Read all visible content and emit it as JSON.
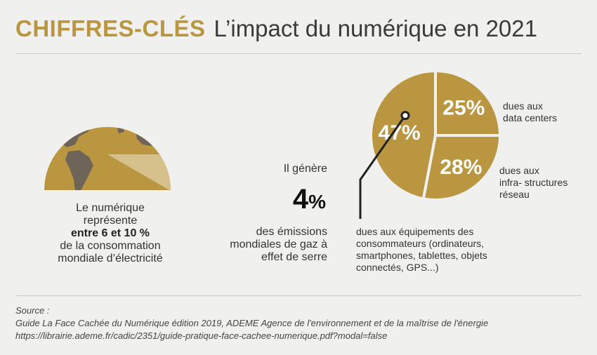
{
  "header": {
    "kicker": "CHIFFRES-CLÉS",
    "title": "L’impact du numérique en 2021"
  },
  "electricity": {
    "line1": "Le numérique",
    "line2": "représente",
    "highlight": "entre 6 et 10 %",
    "line4": "de la consommation",
    "line5": "mondiale d’électricité",
    "share_range_percent": [
      6,
      10
    ]
  },
  "ghg": {
    "intro": "Il génère",
    "value": "4",
    "unit": "%",
    "line1": "des émissions",
    "line2": "mondiales de gaz à",
    "line3": "effet de serre"
  },
  "chart_data": {
    "type": "pie",
    "title": "",
    "unit": "%",
    "slices": [
      {
        "value": 25,
        "label": "25%",
        "caption": [
          "dues aux",
          "data centers"
        ]
      },
      {
        "value": 28,
        "label": "28%",
        "caption": [
          "dues aux",
          "infra- structures",
          "réseau"
        ]
      },
      {
        "value": 47,
        "label": "47%",
        "caption": [
          "dues aux équipements des",
          "consommateurs (ordinateurs,",
          "smartphones, tablettes, objets",
          "connectés, GPS...)"
        ]
      }
    ]
  },
  "colors": {
    "gold": "#b9963f",
    "gold_light": "#d6c08b",
    "land": "#6f6458",
    "background": "#f0f0ef"
  },
  "source": {
    "label": "Source :",
    "line1": "Guide La Face Cachée du Numérique édition 2019, ADEME Agence de l'environnement et de la maîtrise de l'énergie",
    "line2": "https://librairie.ademe.fr/cadic/2351/guide-pratique-face-cachee-numerique.pdf?modal=false"
  }
}
